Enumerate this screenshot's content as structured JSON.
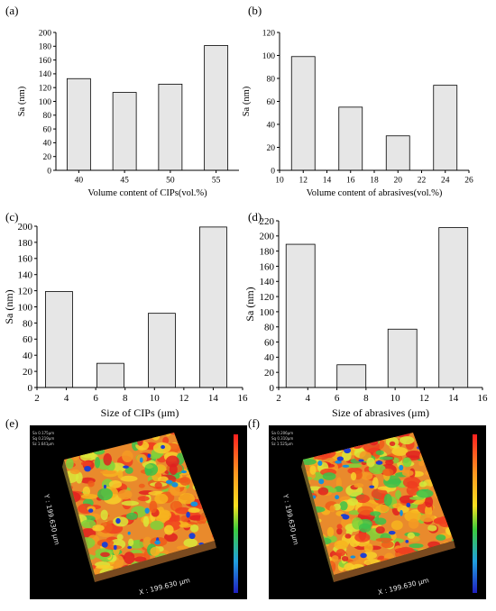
{
  "panels": {
    "a": "(a)",
    "b": "(b)",
    "c": "(c)",
    "d": "(d)",
    "e": "(e)",
    "f": "(f)"
  },
  "chart_data": [
    {
      "id": "a",
      "type": "bar",
      "categories": [
        "40",
        "45",
        "50",
        "55"
      ],
      "values": [
        133,
        113,
        125,
        181
      ],
      "xlabel": "Volume content of CIPs(vol.%)",
      "ylabel": "Sa (nm)",
      "ylim": [
        0,
        200
      ],
      "yticks": [
        0,
        20,
        40,
        60,
        80,
        100,
        120,
        140,
        160,
        180,
        200
      ]
    },
    {
      "id": "b",
      "type": "bar",
      "x": [
        12,
        16,
        20,
        24
      ],
      "values": [
        99,
        55,
        30,
        74
      ],
      "xlabel": "Volume content of abrasives(vol.%)",
      "ylabel": "Sa (nm)",
      "xlim": [
        10,
        26
      ],
      "xticks": [
        10,
        12,
        14,
        16,
        18,
        20,
        22,
        24,
        26
      ],
      "ylim": [
        0,
        120
      ],
      "yticks": [
        0,
        20,
        40,
        60,
        80,
        100,
        120
      ]
    },
    {
      "id": "c",
      "type": "bar",
      "x": [
        3.5,
        7,
        10.5,
        14
      ],
      "values": [
        119,
        30,
        92,
        199
      ],
      "xlabel": "Size of CIPs (μm)",
      "ylabel": "Sa (nm)",
      "xlim": [
        2,
        16
      ],
      "xticks": [
        2,
        4,
        6,
        8,
        10,
        12,
        14,
        16
      ],
      "ylim": [
        0,
        200
      ],
      "yticks": [
        0,
        20,
        40,
        60,
        80,
        100,
        120,
        140,
        160,
        180,
        200
      ]
    },
    {
      "id": "d",
      "type": "bar",
      "x": [
        3.5,
        7,
        10.5,
        14
      ],
      "values": [
        189,
        30,
        77,
        211
      ],
      "xlabel": "Size of abrasives (μm)",
      "ylabel": "Sa (nm)",
      "xlim": [
        2,
        16
      ],
      "xticks": [
        2,
        4,
        6,
        8,
        10,
        12,
        14,
        16
      ],
      "ylim": [
        0,
        220
      ],
      "yticks": [
        0,
        20,
        40,
        60,
        80,
        100,
        120,
        140,
        160,
        180,
        200,
        220
      ]
    }
  ],
  "images": [
    {
      "id": "e",
      "y_axis": "Y : 199.630 μm",
      "x_axis": "X : 199.630 μm",
      "stats": [
        "Sa 0.175μm",
        "Sq 0.219μm",
        "Sz 1.641μm"
      ]
    },
    {
      "id": "f",
      "y_axis": "Y : 199.630 μm",
      "x_axis": "X : 199.630 μm",
      "stats": [
        "Sa 0.206μm",
        "Sq 0.310μm",
        "Sz 1.525μm"
      ]
    }
  ],
  "colors": {
    "bar_fill": "#e6e6e6",
    "bar_stroke": "#000000"
  }
}
